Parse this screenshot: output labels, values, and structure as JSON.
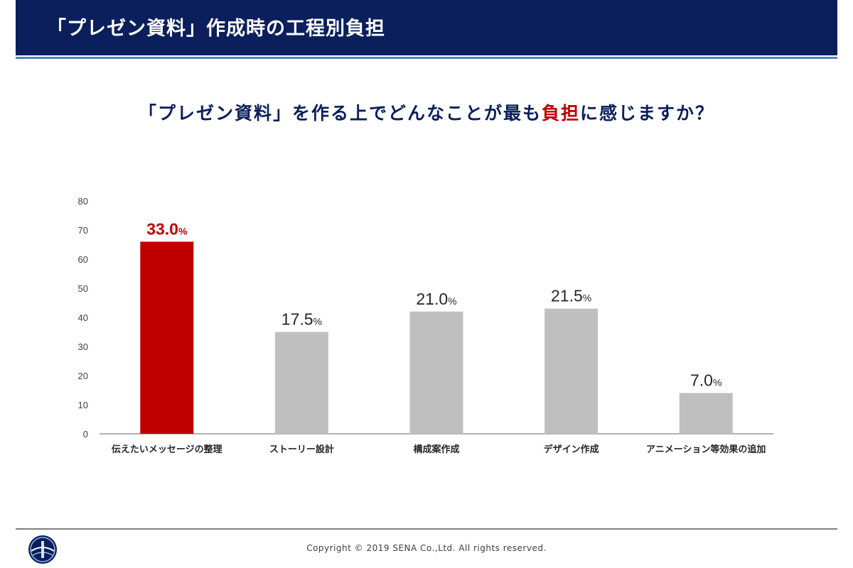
{
  "header": {
    "title": "「プレゼン資料」作成時の工程別負担"
  },
  "question": {
    "prefix": "「プレゼン資料」を作る上でどんなことが最も",
    "highlight": "負担",
    "suffix": "に感じますか？"
  },
  "colors": {
    "header_bg": "#0b1f5c",
    "accent_bar": "#c00000",
    "bar": "#bfbfbf",
    "question_text": "#0b1f5c"
  },
  "chart_data": {
    "type": "bar",
    "categories": [
      "伝えたいメッセージの整理",
      "ストーリー設計",
      "構成案作成",
      "デザイン作成",
      "アニメーション等効果の追加"
    ],
    "values": [
      66,
      35,
      42,
      43,
      14
    ],
    "data_labels": [
      "33.0",
      "17.5",
      "21.0",
      "21.5",
      "7.0"
    ],
    "label_unit": "%",
    "highlight_index": 0,
    "ylim": [
      0,
      80
    ],
    "yticks": [
      0,
      10,
      20,
      30,
      40,
      50,
      60,
      70,
      80
    ],
    "grid": false,
    "legend": "none"
  },
  "footer": {
    "copyright": "Copyright © 2019 SENA Co.,Ltd. All rights reserved."
  },
  "logo": {
    "icon": "company-logo-icon"
  }
}
